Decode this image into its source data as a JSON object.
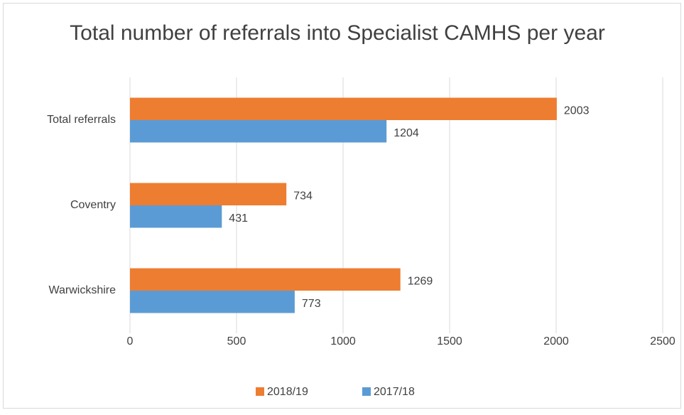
{
  "chart_data": {
    "type": "hbar",
    "title": "Total number of referrals into Specialist CAMHS per year",
    "categories": [
      "Total referrals",
      "Coventry",
      "Warwickshire"
    ],
    "series": [
      {
        "name": "2018/19",
        "color": "#ed7d31",
        "values": [
          2003,
          734,
          1269
        ]
      },
      {
        "name": "2017/18",
        "color": "#5b9bd5",
        "values": [
          1204,
          431,
          773
        ]
      }
    ],
    "xlim": [
      0,
      2500
    ],
    "xticks": [
      0,
      500,
      1000,
      1500,
      2000,
      2500
    ],
    "grid": true,
    "legend": "bottom"
  }
}
